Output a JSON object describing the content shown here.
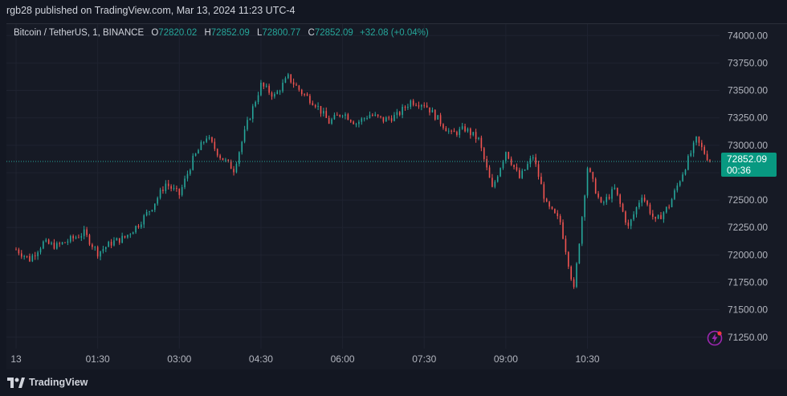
{
  "header": {
    "publisher_text": "rgb28 published on TradingView.com, Mar 13, 2024 11:23 UTC-4"
  },
  "legend": {
    "symbol": "Bitcoin / TetherUS, 1, BINANCE",
    "o_label": "O",
    "o_value": "72820.02",
    "h_label": "H",
    "h_value": "72852.09",
    "l_label": "L",
    "l_value": "72800.77",
    "c_label": "C",
    "c_value": "72852.09",
    "change": "+32.08 (+0.04%)"
  },
  "price_badge": {
    "price": "72852.09",
    "countdown": "00:36"
  },
  "brand": {
    "name": "TradingView"
  },
  "colors": {
    "up": "#26a69a",
    "down": "#ef5350",
    "badge": "#089981",
    "background": "#161a25"
  },
  "icons": {
    "lightning": "lightning-icon",
    "logo": "tradingview-logo-icon"
  },
  "chart_data": {
    "type": "candlestick",
    "title": "Bitcoin / TetherUS, 1, BINANCE",
    "xlabel": "",
    "ylabel": "",
    "x_ticks": [
      "13",
      "01:30",
      "03:00",
      "04:30",
      "06:00",
      "07:30",
      "09:00",
      "10:30"
    ],
    "y_ticks": [
      "74000.00",
      "73750.00",
      "73500.00",
      "73250.00",
      "73000.00",
      "72750.00",
      "72500.00",
      "72250.00",
      "72000.00",
      "71750.00",
      "71500.00",
      "71250.00"
    ],
    "ylim": [
      71175,
      74090
    ],
    "last_price": 72852.09,
    "grid": true,
    "series": [
      {
        "time": "00:00",
        "close": 72050
      },
      {
        "time": "00:15",
        "close": 71960
      },
      {
        "time": "00:30",
        "close": 72110
      },
      {
        "time": "00:45",
        "close": 72080
      },
      {
        "time": "01:00",
        "close": 72140
      },
      {
        "time": "01:15",
        "close": 72200
      },
      {
        "time": "01:30",
        "close": 72020
      },
      {
        "time": "01:45",
        "close": 72110
      },
      {
        "time": "02:00",
        "close": 72160
      },
      {
        "time": "02:15",
        "close": 72280
      },
      {
        "time": "02:30",
        "close": 72440
      },
      {
        "time": "02:45",
        "close": 72650
      },
      {
        "time": "03:00",
        "close": 72550
      },
      {
        "time": "03:15",
        "close": 72870
      },
      {
        "time": "03:30",
        "close": 73080
      },
      {
        "time": "03:45",
        "close": 72900
      },
      {
        "time": "04:00",
        "close": 72780
      },
      {
        "time": "04:15",
        "close": 73200
      },
      {
        "time": "04:30",
        "close": 73550
      },
      {
        "time": "04:45",
        "close": 73450
      },
      {
        "time": "05:00",
        "close": 73620
      },
      {
        "time": "05:15",
        "close": 73480
      },
      {
        "time": "05:30",
        "close": 73380
      },
      {
        "time": "05:45",
        "close": 73210
      },
      {
        "time": "06:00",
        "close": 73300
      },
      {
        "time": "06:15",
        "close": 73200
      },
      {
        "time": "06:30",
        "close": 73280
      },
      {
        "time": "06:45",
        "close": 73230
      },
      {
        "time": "07:00",
        "close": 73270
      },
      {
        "time": "07:15",
        "close": 73400
      },
      {
        "time": "07:30",
        "close": 73380
      },
      {
        "time": "07:45",
        "close": 73240
      },
      {
        "time": "08:00",
        "close": 73100
      },
      {
        "time": "08:15",
        "close": 73150
      },
      {
        "time": "08:30",
        "close": 73050
      },
      {
        "time": "08:45",
        "close": 72600
      },
      {
        "time": "09:00",
        "close": 72950
      },
      {
        "time": "09:15",
        "close": 72700
      },
      {
        "time": "09:30",
        "close": 72900
      },
      {
        "time": "09:45",
        "close": 72450
      },
      {
        "time": "10:00",
        "close": 72300
      },
      {
        "time": "10:15",
        "close": 71680
      },
      {
        "time": "10:30",
        "close": 72800
      },
      {
        "time": "10:45",
        "close": 72450
      },
      {
        "time": "11:00",
        "close": 72600
      },
      {
        "time": "11:15",
        "close": 72250
      },
      {
        "time": "11:30",
        "close": 72550
      },
      {
        "time": "11:45",
        "close": 72300
      },
      {
        "time": "12:00",
        "close": 72450
      },
      {
        "time": "12:15",
        "close": 72750
      },
      {
        "time": "12:30",
        "close": 73050
      },
      {
        "time": "12:45",
        "close": 72852
      }
    ]
  }
}
